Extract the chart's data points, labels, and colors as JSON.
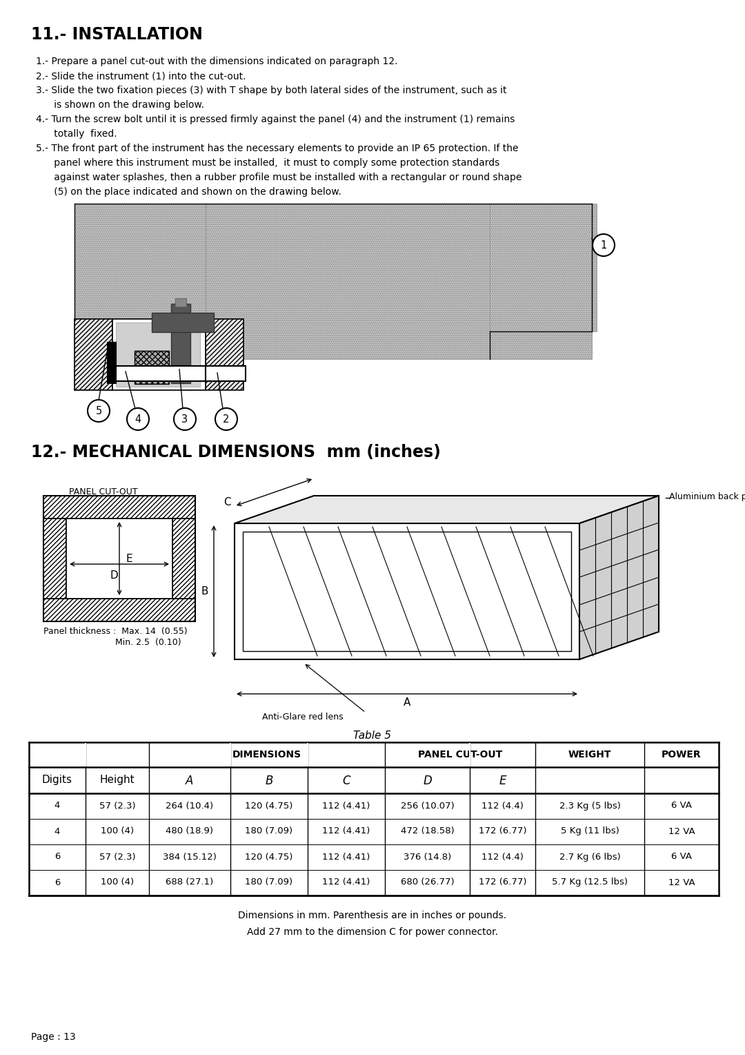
{
  "title_installation": "11.- INSTALLATION",
  "title_mechanical": "12.- MECHANICAL DIMENSIONS  mm (inches)",
  "step1": "1.- Prepare a panel cut-out with the dimensions indicated on paragraph 12.",
  "step2": "2.- Slide the instrument (1) into the cut-out.",
  "step3a": "3.- Slide the two fixation pieces (3) with T shape by both lateral sides of the instrument, such as it",
  "step3b": "      is shown on the drawing below.",
  "step4a": "4.- Turn the screw bolt until it is pressed firmly against the panel (4) and the instrument (1) remains",
  "step4b": "      totally  fixed.",
  "step5a": "5.- The front part of the instrument has the necessary elements to provide an IP 65 protection. If the",
  "step5b": "      panel where this instrument must be installed,  it must to comply some protection standards",
  "step5c": "      against water splashes, then a rubber profile must be installed with a rectangular or round shape",
  "step5d": "      (5) on the place indicated and shown on the drawing below.",
  "panel_cutout_label": "PANEL CUT-OUT",
  "panel_thickness1": "Panel thickness :  Max. 14  (0.55)",
  "panel_thickness2": "                          Min. 2.5  (0.10)",
  "aluminium_back_plate": "Aluminium back plate",
  "anti_glare_red_lens": "Anti-Glare red lens",
  "table_title": "Table 5",
  "table_header1": "DIMENSIONS",
  "table_header2": "PANEL CUT-OUT",
  "table_header3": "WEIGHT",
  "table_header4": "POWER",
  "table_data": [
    [
      "4",
      "57 (2.3)",
      "264 (10.4)",
      "120 (4.75)",
      "112 (4.41)",
      "256 (10.07)",
      "112 (4.4)",
      "2.3 Kg (5 lbs)",
      "6 VA"
    ],
    [
      "4",
      "100 (4)",
      "480 (18.9)",
      "180 (7.09)",
      "112 (4.41)",
      "472 (18.58)",
      "172 (6.77)",
      "5 Kg (11 lbs)",
      "12 VA"
    ],
    [
      "6",
      "57 (2.3)",
      "384 (15.12)",
      "120 (4.75)",
      "112 (4.41)",
      "376 (14.8)",
      "112 (4.4)",
      "2.7 Kg (6 lbs)",
      "6 VA"
    ],
    [
      "6",
      "100 (4)",
      "688 (27.1)",
      "180 (7.09)",
      "112 (4.41)",
      "680 (26.77)",
      "172 (6.77)",
      "5.7 Kg (12.5 lbs)",
      "12 VA"
    ]
  ],
  "footnote1": "Dimensions in mm. Parenthesis are in inches or pounds.",
  "footnote2": "Add 27 mm to the dimension C for power connector.",
  "page_text": "Page : 13",
  "bg_color": "#ffffff"
}
